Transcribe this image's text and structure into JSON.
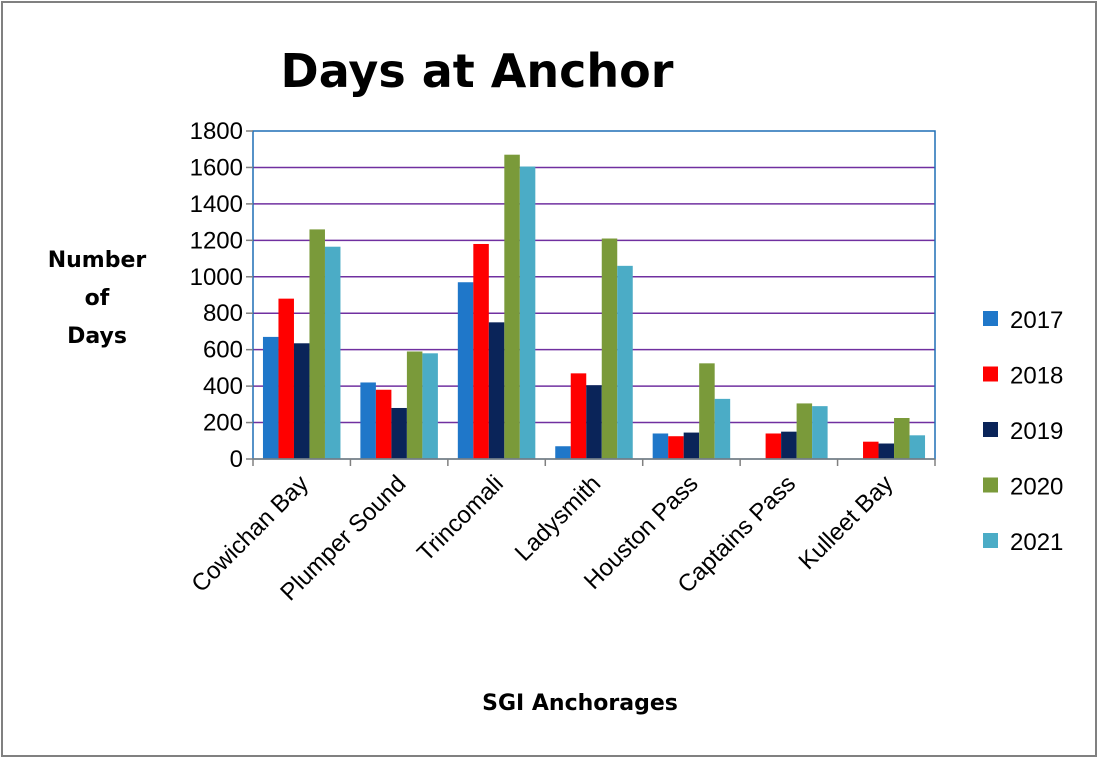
{
  "chart_data": {
    "type": "bar",
    "title": "Days at Anchor",
    "xlabel": "SGI Anchorages",
    "ylabel": [
      "Number",
      "of",
      "Days"
    ],
    "ylim": [
      0,
      1800
    ],
    "yticks": [
      0,
      200,
      400,
      600,
      800,
      1000,
      1200,
      1400,
      1600,
      1800
    ],
    "grid": true,
    "legend_position": "right",
    "categories": [
      "Cowichan Bay",
      "Plumper Sound",
      "Trincomali",
      "Ladysmith",
      "Houston Pass",
      "Captains Pass",
      "Kulleet Bay"
    ],
    "series": [
      {
        "name": "2017",
        "color": "#1f77c9",
        "values": [
          670,
          420,
          970,
          70,
          140,
          0,
          0
        ]
      },
      {
        "name": "2018",
        "color": "#ff0000",
        "values": [
          880,
          380,
          1180,
          470,
          125,
          140,
          95
        ]
      },
      {
        "name": "2019",
        "color": "#0a2459",
        "values": [
          635,
          280,
          750,
          405,
          145,
          150,
          85
        ]
      },
      {
        "name": "2020",
        "color": "#7a9a3a",
        "values": [
          1260,
          590,
          1670,
          1210,
          525,
          305,
          225
        ]
      },
      {
        "name": "2021",
        "color": "#4bacc6",
        "values": [
          1165,
          580,
          1605,
          1060,
          330,
          290,
          130
        ]
      }
    ],
    "colors": {
      "plot_border": "#1f6fb5",
      "gridline": "#7030a0",
      "axis": "#808080"
    }
  }
}
